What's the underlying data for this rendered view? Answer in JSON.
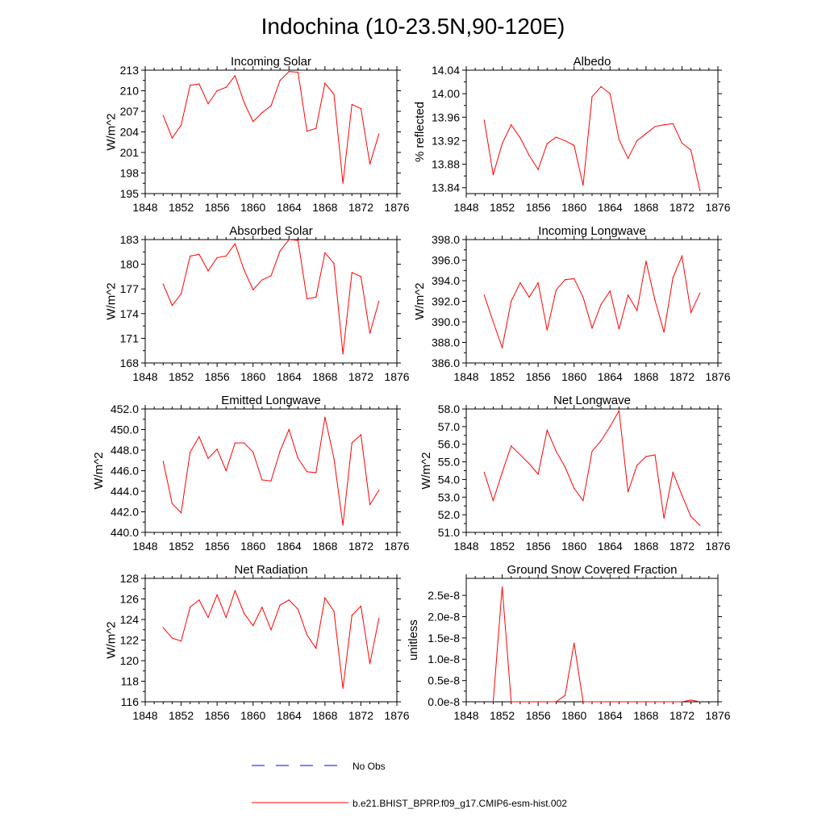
{
  "main_title": "Indochina (10-23.5N,90-120E)",
  "colors": {
    "model": "#ff0000",
    "obs": "#0000ff",
    "axis": "#000000"
  },
  "legend": {
    "obs_label": "No Obs",
    "model_label": "b.e21.BHIST_BPRP.f09_g17.CMIP6-esm-hist.002"
  },
  "chart_data": [
    {
      "type": "line",
      "title": "Incoming Solar",
      "ylabel": "W/m^2",
      "xlim": [
        1848,
        1876
      ],
      "ylim": [
        195,
        213
      ],
      "x_ticks": [
        1848,
        1852,
        1856,
        1860,
        1864,
        1868,
        1872,
        1876
      ],
      "x_tick_labels": [
        "1848",
        "1852",
        "1856",
        "1860",
        "1864",
        "1868",
        "1872",
        "1876"
      ],
      "y_ticks": [
        195,
        198,
        201,
        204,
        207,
        210,
        213
      ],
      "y_tick_labels": [
        "195",
        "198",
        "201",
        "204",
        "207",
        "210",
        "213"
      ],
      "x": [
        1850,
        1851,
        1852,
        1853,
        1854,
        1855,
        1856,
        1857,
        1858,
        1859,
        1860,
        1861,
        1862,
        1863,
        1864,
        1865,
        1866,
        1867,
        1868,
        1869,
        1870,
        1871,
        1872,
        1873,
        1874
      ],
      "series": [
        {
          "name": "b.e21.BHIST_BPRP.f09_g17.CMIP6-esm-hist.002",
          "values": [
            206.4,
            203.1,
            205.0,
            210.8,
            211.0,
            208.1,
            210.0,
            210.5,
            212.2,
            208.3,
            205.5,
            206.8,
            207.8,
            211.5,
            212.8,
            212.7,
            204.1,
            204.5,
            211.1,
            209.5,
            196.5,
            208.0,
            207.4,
            199.3,
            203.7
          ]
        }
      ]
    },
    {
      "type": "line",
      "title": "Albedo",
      "ylabel": "% reflected",
      "xlim": [
        1848,
        1876
      ],
      "ylim": [
        13.83,
        14.04
      ],
      "x_ticks": [
        1848,
        1852,
        1856,
        1860,
        1864,
        1868,
        1872,
        1876
      ],
      "x_tick_labels": [
        "1848",
        "1852",
        "1856",
        "1860",
        "1864",
        "1868",
        "1872",
        "1876"
      ],
      "y_ticks": [
        13.84,
        13.88,
        13.92,
        13.96,
        14.0,
        14.04
      ],
      "y_tick_labels": [
        "13.84",
        "13.88",
        "13.92",
        "13.96",
        "14.00",
        "14.04"
      ],
      "x": [
        1850,
        1851,
        1852,
        1853,
        1854,
        1855,
        1856,
        1857,
        1858,
        1859,
        1860,
        1861,
        1862,
        1863,
        1864,
        1865,
        1866,
        1867,
        1868,
        1869,
        1870,
        1871,
        1872,
        1873,
        1874
      ],
      "series": [
        {
          "name": "b.e21.BHIST_BPRP.f09_g17.CMIP6-esm-hist.002",
          "values": [
            13.955,
            13.862,
            13.915,
            13.947,
            13.925,
            13.895,
            13.871,
            13.915,
            13.926,
            13.92,
            13.912,
            13.844,
            13.995,
            14.012,
            14.0,
            13.922,
            13.89,
            13.92,
            13.932,
            13.944,
            13.947,
            13.949,
            13.916,
            13.904,
            13.835
          ]
        }
      ]
    },
    {
      "type": "line",
      "title": "Absorbed Solar",
      "ylabel": "W/m^2",
      "xlim": [
        1848,
        1876
      ],
      "ylim": [
        168,
        183
      ],
      "x_ticks": [
        1848,
        1852,
        1856,
        1860,
        1864,
        1868,
        1872,
        1876
      ],
      "x_tick_labels": [
        "1848",
        "1852",
        "1856",
        "1860",
        "1864",
        "1868",
        "1872",
        "1876"
      ],
      "y_ticks": [
        168,
        171,
        174,
        177,
        180,
        183
      ],
      "y_tick_labels": [
        "168",
        "171",
        "174",
        "177",
        "180",
        "183"
      ],
      "x": [
        1850,
        1851,
        1852,
        1853,
        1854,
        1855,
        1856,
        1857,
        1858,
        1859,
        1860,
        1861,
        1862,
        1863,
        1864,
        1865,
        1866,
        1867,
        1868,
        1869,
        1870,
        1871,
        1872,
        1873,
        1874
      ],
      "series": [
        {
          "name": "b.e21.BHIST_BPRP.f09_g17.CMIP6-esm-hist.002",
          "values": [
            177.6,
            175.0,
            176.4,
            181.0,
            181.2,
            179.2,
            180.8,
            181.0,
            182.5,
            179.3,
            176.9,
            178.1,
            178.6,
            181.6,
            183.0,
            182.9,
            175.8,
            176.0,
            181.4,
            180.1,
            169.1,
            179.0,
            178.5,
            171.6,
            175.5
          ]
        }
      ]
    },
    {
      "type": "line",
      "title": "Incoming Longwave",
      "ylabel": "W/m^2",
      "xlim": [
        1848,
        1876
      ],
      "ylim": [
        386.0,
        398.0
      ],
      "x_ticks": [
        1848,
        1852,
        1856,
        1860,
        1864,
        1868,
        1872,
        1876
      ],
      "x_tick_labels": [
        "1848",
        "1852",
        "1856",
        "1860",
        "1864",
        "1868",
        "1872",
        "1876"
      ],
      "y_ticks": [
        386.0,
        388.0,
        390.0,
        392.0,
        394.0,
        396.0,
        398.0
      ],
      "y_tick_labels": [
        "386.0",
        "388.0",
        "390.0",
        "392.0",
        "394.0",
        "396.0",
        "398.0"
      ],
      "x": [
        1850,
        1851,
        1852,
        1853,
        1854,
        1855,
        1856,
        1857,
        1858,
        1859,
        1860,
        1861,
        1862,
        1863,
        1864,
        1865,
        1866,
        1867,
        1868,
        1869,
        1870,
        1871,
        1872,
        1873,
        1874
      ],
      "series": [
        {
          "name": "b.e21.BHIST_BPRP.f09_g17.CMIP6-esm-hist.002",
          "values": [
            392.6,
            390.0,
            387.5,
            392.0,
            393.8,
            392.4,
            393.8,
            389.2,
            393.1,
            394.1,
            394.2,
            392.4,
            389.4,
            391.7,
            393.0,
            389.3,
            392.6,
            391.1,
            395.9,
            392.1,
            389.0,
            394.3,
            396.4,
            390.9,
            392.8
          ]
        }
      ]
    },
    {
      "type": "line",
      "title": "Emitted Longwave",
      "ylabel": "W/m^2",
      "xlim": [
        1848,
        1876
      ],
      "ylim": [
        440.0,
        452.0
      ],
      "x_ticks": [
        1848,
        1852,
        1856,
        1860,
        1864,
        1868,
        1872,
        1876
      ],
      "x_tick_labels": [
        "1848",
        "1852",
        "1856",
        "1860",
        "1864",
        "1868",
        "1872",
        "1876"
      ],
      "y_ticks": [
        440.0,
        442.0,
        444.0,
        446.0,
        448.0,
        450.0,
        452.0
      ],
      "y_tick_labels": [
        "440.0",
        "442.0",
        "444.0",
        "446.0",
        "448.0",
        "450.0",
        "452.0"
      ],
      "x": [
        1850,
        1851,
        1852,
        1853,
        1854,
        1855,
        1856,
        1857,
        1858,
        1859,
        1860,
        1861,
        1862,
        1863,
        1864,
        1865,
        1866,
        1867,
        1868,
        1869,
        1870,
        1871,
        1872,
        1873,
        1874
      ],
      "series": [
        {
          "name": "b.e21.BHIST_BPRP.f09_g17.CMIP6-esm-hist.002",
          "values": [
            446.9,
            442.8,
            441.9,
            447.8,
            449.3,
            447.2,
            448.1,
            446.0,
            448.7,
            448.7,
            447.8,
            445.1,
            445.0,
            447.9,
            450.0,
            447.2,
            445.9,
            445.8,
            451.2,
            447.2,
            440.7,
            448.7,
            449.5,
            442.7,
            444.1
          ]
        }
      ]
    },
    {
      "type": "line",
      "title": "Net Longwave",
      "ylabel": "W/m^2",
      "xlim": [
        1848,
        1876
      ],
      "ylim": [
        51.0,
        58.0
      ],
      "x_ticks": [
        1848,
        1852,
        1856,
        1860,
        1864,
        1868,
        1872,
        1876
      ],
      "x_tick_labels": [
        "1848",
        "1852",
        "1856",
        "1860",
        "1864",
        "1868",
        "1872",
        "1876"
      ],
      "y_ticks": [
        51.0,
        52.0,
        53.0,
        54.0,
        55.0,
        56.0,
        57.0,
        58.0
      ],
      "y_tick_labels": [
        "51.0",
        "52.0",
        "53.0",
        "54.0",
        "55.0",
        "56.0",
        "57.0",
        "58.0"
      ],
      "x": [
        1850,
        1851,
        1852,
        1853,
        1854,
        1855,
        1856,
        1857,
        1858,
        1859,
        1860,
        1861,
        1862,
        1863,
        1864,
        1865,
        1866,
        1867,
        1868,
        1869,
        1870,
        1871,
        1872,
        1873,
        1874
      ],
      "series": [
        {
          "name": "b.e21.BHIST_BPRP.f09_g17.CMIP6-esm-hist.002",
          "values": [
            54.4,
            52.8,
            54.4,
            55.9,
            55.4,
            54.9,
            54.3,
            56.8,
            55.6,
            54.7,
            53.5,
            52.8,
            55.6,
            56.2,
            57.0,
            57.9,
            53.3,
            54.8,
            55.3,
            55.4,
            51.8,
            54.4,
            53.1,
            51.9,
            51.4
          ]
        }
      ]
    },
    {
      "type": "line",
      "title": "Net Radiation",
      "ylabel": "W/m^2",
      "xlim": [
        1848,
        1876
      ],
      "ylim": [
        116,
        128
      ],
      "x_ticks": [
        1848,
        1852,
        1856,
        1860,
        1864,
        1868,
        1872,
        1876
      ],
      "x_tick_labels": [
        "1848",
        "1852",
        "1856",
        "1860",
        "1864",
        "1868",
        "1872",
        "1876"
      ],
      "y_ticks": [
        116,
        118,
        120,
        122,
        124,
        126,
        128
      ],
      "y_tick_labels": [
        "116",
        "118",
        "120",
        "122",
        "124",
        "126",
        "128"
      ],
      "x": [
        1850,
        1851,
        1852,
        1853,
        1854,
        1855,
        1856,
        1857,
        1858,
        1859,
        1860,
        1861,
        1862,
        1863,
        1864,
        1865,
        1866,
        1867,
        1868,
        1869,
        1870,
        1871,
        1872,
        1873,
        1874
      ],
      "series": [
        {
          "name": "b.e21.BHIST_BPRP.f09_g17.CMIP6-esm-hist.002",
          "values": [
            123.2,
            122.2,
            121.9,
            125.2,
            125.9,
            124.2,
            126.4,
            124.2,
            126.8,
            124.6,
            123.4,
            125.2,
            123.0,
            125.4,
            125.9,
            125.0,
            122.5,
            121.2,
            126.1,
            124.8,
            117.3,
            124.4,
            125.3,
            119.7,
            124.1
          ]
        }
      ]
    },
    {
      "type": "line",
      "title": "Ground Snow Covered Fraction",
      "ylabel": "unitless",
      "xlim": [
        1848,
        1876
      ],
      "ylim": [
        0,
        2.9e-08
      ],
      "x_ticks": [
        1848,
        1852,
        1856,
        1860,
        1864,
        1868,
        1872,
        1876
      ],
      "x_tick_labels": [
        "1848",
        "1852",
        "1856",
        "1860",
        "1864",
        "1868",
        "1872",
        "1876"
      ],
      "y_ticks": [
        0,
        5e-09,
        1e-08,
        1.5e-08,
        2e-08,
        2.5e-08
      ],
      "y_tick_labels": [
        "0.0e-8",
        "0.5e-8",
        "1.0e-8",
        "1.5e-8",
        "2.0e-8",
        "2.5e-8"
      ],
      "x": [
        1851,
        1852,
        1853,
        1854,
        1855,
        1856,
        1857,
        1858,
        1859,
        1860,
        1861,
        1862,
        1863,
        1864,
        1865,
        1866,
        1867,
        1868,
        1869,
        1870,
        1871,
        1872,
        1873,
        1874
      ],
      "series": [
        {
          "name": "b.e21.BHIST_BPRP.f09_g17.CMIP6-esm-hist.002",
          "values": [
            0,
            2.7e-08,
            0,
            0,
            0,
            0,
            0,
            0,
            1.5e-09,
            1.38e-08,
            0,
            0,
            0,
            0,
            0,
            0,
            0,
            0,
            0,
            0,
            0,
            0,
            4e-10,
            0
          ]
        }
      ]
    }
  ]
}
